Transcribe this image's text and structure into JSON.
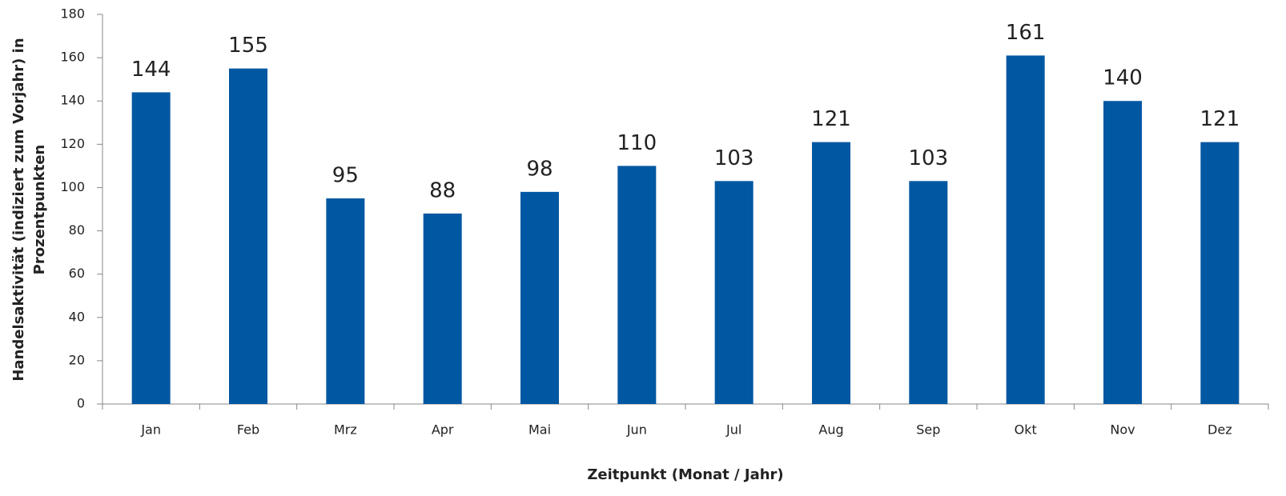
{
  "chart_data": {
    "type": "bar",
    "xlabel": "Zeitpunkt (Monat / Jahr)",
    "ylabel": [
      "Handelsaktivität (indiziert zum Vorjahr) in",
      "Prozentpunkten"
    ],
    "categories": [
      "Jan",
      "Feb",
      "Mrz",
      "Apr",
      "Mai",
      "Jun",
      "Jul",
      "Aug",
      "Sep",
      "Okt",
      "Nov",
      "Dez"
    ],
    "values": [
      144,
      155,
      95,
      88,
      98,
      110,
      103,
      121,
      103,
      161,
      140,
      121
    ],
    "color": "#0057a2",
    "ylim": [
      0,
      180
    ],
    "yticks": [
      0,
      20,
      40,
      60,
      80,
      100,
      120,
      140,
      160,
      180
    ],
    "grid": false,
    "value_labels_shown": true
  }
}
